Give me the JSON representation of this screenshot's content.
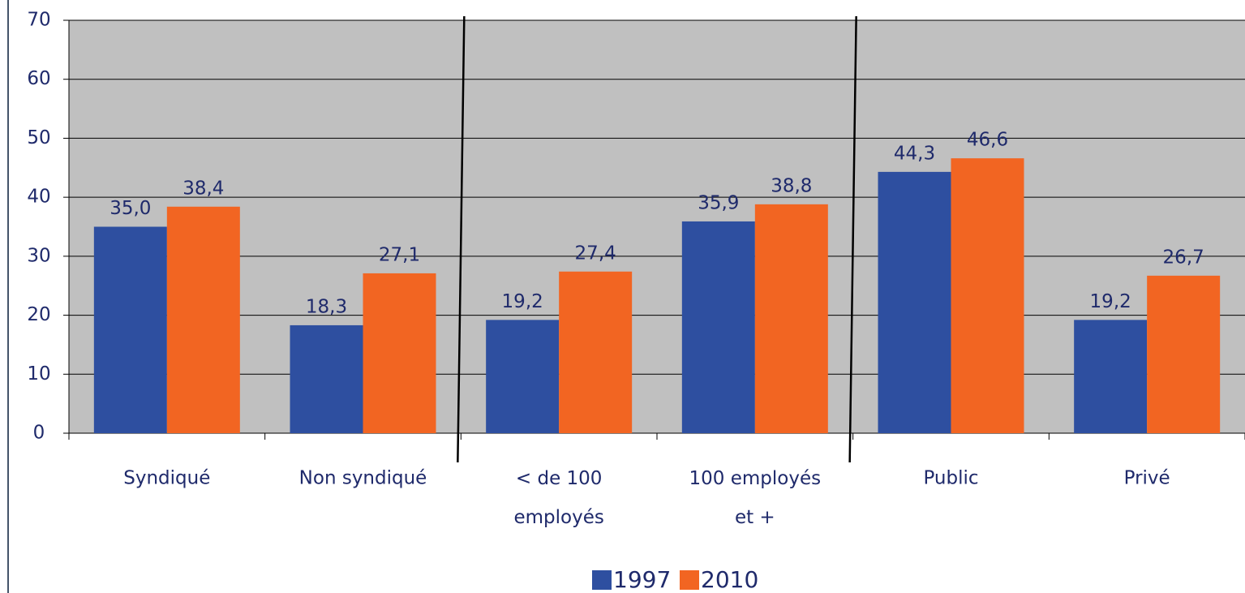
{
  "chart_data": {
    "type": "bar",
    "categories": [
      "Syndiqué",
      "Non syndiqué",
      "< de 100 employés",
      "100 employés et +",
      "Public",
      "Privé"
    ],
    "series": [
      {
        "name": "1997",
        "color": "#2e4fa0",
        "values": [
          35.0,
          18.3,
          19.2,
          35.9,
          44.3,
          19.2
        ],
        "value_labels": [
          "35,0",
          "18,3",
          "19,2",
          "35,9",
          "44,3",
          "19,2"
        ]
      },
      {
        "name": "2010",
        "color": "#f26522",
        "values": [
          38.4,
          27.1,
          27.4,
          38.8,
          46.6,
          26.7
        ],
        "value_labels": [
          "38,4",
          "27,1",
          "27,4",
          "38,8",
          "46,6",
          "26,7"
        ]
      }
    ],
    "ylim": [
      0,
      70
    ],
    "yticks": [
      0,
      10,
      20,
      30,
      40,
      50,
      60,
      70
    ],
    "grid": true,
    "legend": "bottom"
  }
}
